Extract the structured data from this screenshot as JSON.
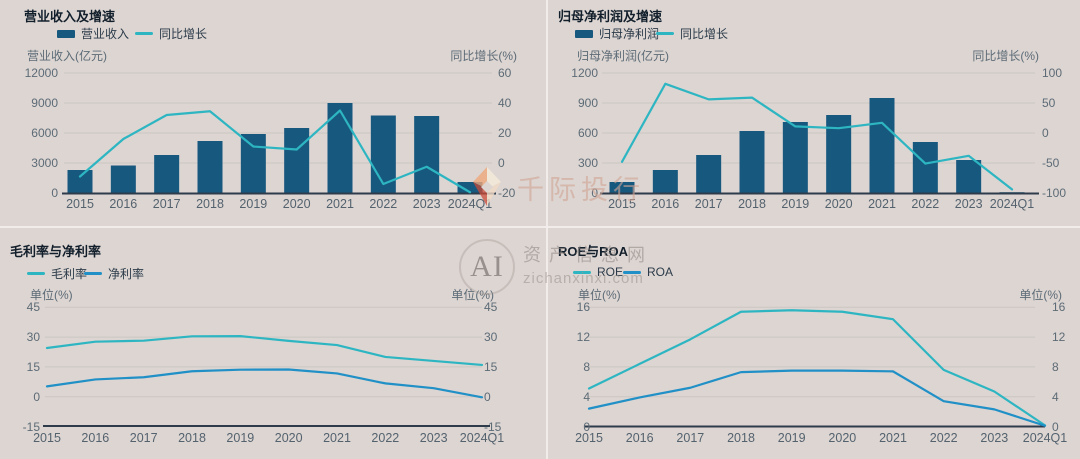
{
  "colors": {
    "background": "#dcd5d2",
    "bar_blue": "#17587e",
    "teal": "#2db6c2",
    "blue": "#2090c6",
    "axis_line": "#2e3b4a",
    "grid_line": "#ccc6c3",
    "title_text": "#121f2b",
    "muted_text": "#5d6b76"
  },
  "watermarks": {
    "brand1": {
      "text": "千际投行"
    },
    "brand2": {
      "logo_text": "AI",
      "line1": "资产信息网",
      "line2": "zichanxinxi.com"
    }
  },
  "chart_data": [
    {
      "type": "bar",
      "title": "营业收入及增速",
      "categories": [
        "2015",
        "2016",
        "2017",
        "2018",
        "2019",
        "2020",
        "2021",
        "2022",
        "2023",
        "2024Q1"
      ],
      "left_axis": {
        "label": "营业收入(亿元)",
        "ticks": [
          0,
          3000,
          6000,
          9000,
          12000
        ],
        "min": 0,
        "max": 12000
      },
      "right_axis": {
        "label": "同比增长(%)",
        "ticks": [
          -20,
          0,
          20,
          40,
          60
        ],
        "min": -20,
        "max": 60
      },
      "grid": true,
      "legend_position": "top-left",
      "series": [
        {
          "name": "营业收入",
          "kind": "bar",
          "axis": "left",
          "color": "#17587e",
          "values": [
            2300,
            2750,
            3800,
            5200,
            5900,
            6500,
            9000,
            7750,
            7700,
            1100
          ]
        },
        {
          "name": "同比增长",
          "kind": "line",
          "axis": "right",
          "color": "#2db6c2",
          "values": [
            -9,
            16,
            32,
            34.5,
            11,
            9,
            35,
            -14,
            -2.5,
            -19.5
          ]
        }
      ]
    },
    {
      "type": "bar",
      "title": "归母净利润及增速",
      "categories": [
        "2015",
        "2016",
        "2017",
        "2018",
        "2019",
        "2020",
        "2021",
        "2022",
        "2023",
        "2024Q1"
      ],
      "left_axis": {
        "label": "归母净利润(亿元)",
        "ticks": [
          0,
          300,
          600,
          900,
          1200
        ],
        "min": 0,
        "max": 1200
      },
      "right_axis": {
        "label": "同比增长(%)",
        "ticks": [
          -100,
          -50,
          0,
          50,
          100
        ],
        "min": -100,
        "max": 100
      },
      "grid": true,
      "legend_position": "top-left",
      "series": [
        {
          "name": "归母净利润",
          "kind": "bar",
          "axis": "left",
          "color": "#17587e",
          "values": [
            110,
            230,
            380,
            620,
            710,
            780,
            950,
            510,
            330,
            8
          ]
        },
        {
          "name": "同比增长",
          "kind": "line",
          "axis": "right",
          "color": "#2db6c2",
          "values": [
            -48,
            82,
            56,
            59,
            11,
            8,
            17,
            -51,
            -38,
            -94
          ]
        }
      ]
    },
    {
      "type": "line",
      "title": "毛利率与净利率",
      "categories": [
        "2015",
        "2016",
        "2017",
        "2018",
        "2019",
        "2020",
        "2021",
        "2022",
        "2023",
        "2024Q1"
      ],
      "left_axis": {
        "label": "单位(%)",
        "ticks": [
          -15,
          0,
          15,
          30,
          45
        ],
        "min": -15,
        "max": 45
      },
      "right_axis": {
        "label": "单位(%)",
        "ticks": [
          -15,
          0,
          15,
          30,
          45
        ],
        "min": -15,
        "max": 45
      },
      "grid": true,
      "legend_position": "top-left",
      "series": [
        {
          "name": "毛利率",
          "kind": "line",
          "axis": "left",
          "color": "#2db6c2",
          "values": [
            24.5,
            27.7,
            28.2,
            30.4,
            30.5,
            28.1,
            26.0,
            20.0,
            18.0,
            16.0
          ]
        },
        {
          "name": "净利率",
          "kind": "line",
          "axis": "left",
          "color": "#2090c6",
          "values": [
            5.2,
            8.7,
            9.8,
            12.8,
            13.6,
            13.7,
            11.7,
            6.7,
            4.3,
            -0.3
          ]
        }
      ]
    },
    {
      "type": "line",
      "title": "ROE与ROA",
      "categories": [
        "2015",
        "2016",
        "2017",
        "2018",
        "2019",
        "2020",
        "2021",
        "2022",
        "2023",
        "2024Q1"
      ],
      "left_axis": {
        "label": "单位(%)",
        "ticks": [
          0,
          4,
          8,
          12,
          16
        ],
        "min": 0,
        "max": 16
      },
      "right_axis": {
        "label": "单位(%)",
        "ticks": [
          0,
          4,
          8,
          12,
          16
        ],
        "min": 0,
        "max": 16
      },
      "grid": true,
      "legend_position": "top-left",
      "series": [
        {
          "name": "ROE",
          "kind": "line",
          "axis": "left",
          "color": "#2db6c2",
          "values": [
            5.1,
            8.4,
            11.7,
            15.4,
            15.6,
            15.4,
            14.4,
            7.6,
            4.7,
            0.15
          ]
        },
        {
          "name": "ROA",
          "kind": "line",
          "axis": "left",
          "color": "#2090c6",
          "values": [
            2.4,
            3.9,
            5.2,
            7.3,
            7.5,
            7.5,
            7.4,
            3.4,
            2.3,
            0.1
          ]
        }
      ]
    }
  ]
}
